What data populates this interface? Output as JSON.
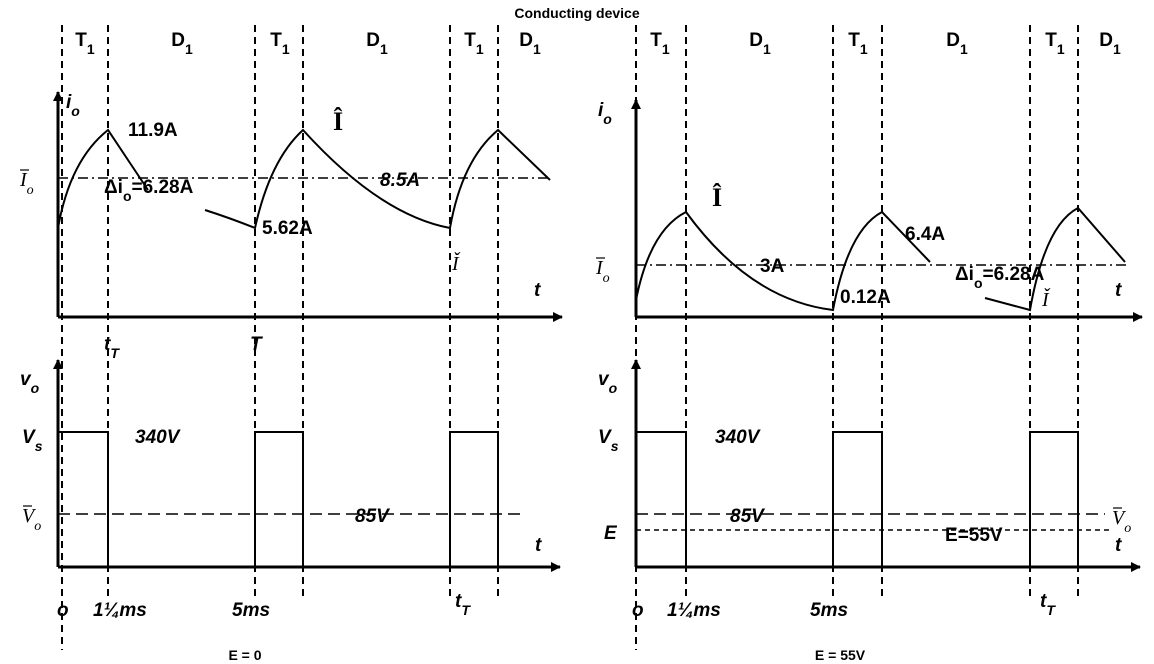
{
  "title": "Conducting device",
  "left": {
    "phases": [
      {
        "name": "T",
        "sub": "1"
      },
      {
        "name": "D",
        "sub": "1"
      },
      {
        "name": "T",
        "sub": "1"
      },
      {
        "name": "D",
        "sub": "1"
      },
      {
        "name": "T",
        "sub": "1"
      },
      {
        "name": "D",
        "sub": "1"
      }
    ],
    "current": {
      "axis": {
        "name": "i",
        "sub": "o"
      },
      "peak": "11.9A",
      "avg": {
        "name": "I",
        "sub": "o"
      },
      "ripple": {
        "name": "Δi",
        "sub": "o",
        "value": "=6.28A"
      },
      "avg_value": "8.5A",
      "max_symbol": "Î",
      "min": "5.62A",
      "min_symbol": "Ǐ",
      "t": "t"
    },
    "time_marks": {
      "tT": {
        "name": "t",
        "sub": "T"
      },
      "T": "T"
    },
    "voltage": {
      "axis": {
        "name": "v",
        "sub": "o"
      },
      "vs": {
        "name": "V",
        "sub": "s"
      },
      "vs_value": "340V",
      "avg": {
        "name": "V",
        "sub": "o"
      },
      "avg_value": "85V",
      "t": "t"
    },
    "bottom": {
      "origin": "o",
      "t1": "1¼ms",
      "t2": "5ms",
      "tT": {
        "name": "t",
        "sub": "T"
      }
    },
    "caption": {
      "name": "E",
      "value": " = 0"
    }
  },
  "right": {
    "phases": [
      {
        "name": "T",
        "sub": "1"
      },
      {
        "name": "D",
        "sub": "1"
      },
      {
        "name": "T",
        "sub": "1"
      },
      {
        "name": "D",
        "sub": "1"
      },
      {
        "name": "T",
        "sub": "1"
      },
      {
        "name": "D",
        "sub": "1"
      }
    ],
    "current": {
      "axis": {
        "name": "i",
        "sub": "o"
      },
      "max_symbol": "Î",
      "peak": "6.4A",
      "avg": {
        "name": "I",
        "sub": "o"
      },
      "avg_value": "3A",
      "ripple": {
        "name": "Δi",
        "sub": "o",
        "value": "=6.28A"
      },
      "min": "0.12A",
      "min_symbol": "Ǐ",
      "t": "t"
    },
    "voltage": {
      "axis": {
        "name": "v",
        "sub": "o"
      },
      "vs": {
        "name": "V",
        "sub": "s"
      },
      "vs_value": "340V",
      "avg_value": "85V",
      "avg": {
        "name": "V",
        "sub": "o"
      },
      "e": "E",
      "e_value": {
        "name": "E",
        "value": "=55V"
      },
      "t": "t"
    },
    "bottom": {
      "origin": "o",
      "t1": "1¼ms",
      "t2": "5ms",
      "tT": {
        "name": "t",
        "sub": "T"
      }
    },
    "caption": {
      "name": "E",
      "value": " = 55V"
    }
  }
}
